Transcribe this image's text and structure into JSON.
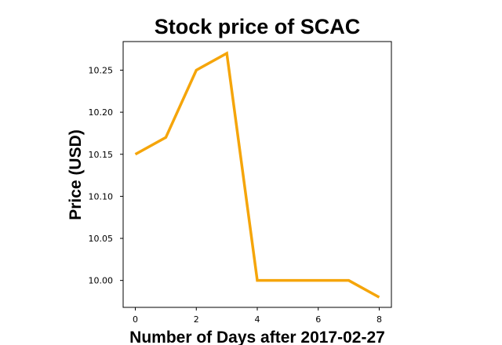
{
  "chart_data": {
    "type": "line",
    "title": "Stock price of SCAC",
    "xlabel": "Number of Days after 2017-02-27",
    "ylabel": "Price (USD)",
    "x": [
      0,
      1,
      2,
      3,
      4,
      5,
      6,
      7,
      8
    ],
    "series": [
      {
        "values": [
          10.15,
          10.17,
          10.25,
          10.27,
          10.0,
          10.0,
          10.0,
          10.0,
          9.98
        ],
        "color": "#f5a50a"
      }
    ],
    "xlim": [
      -0.4,
      8.4
    ],
    "ylim": [
      9.968,
      10.284
    ],
    "xticks": [
      0,
      2,
      4,
      6,
      8
    ],
    "xtick_labels": [
      "0",
      "2",
      "4",
      "6",
      "8"
    ],
    "yticks": [
      10.0,
      10.05,
      10.1,
      10.15,
      10.2,
      10.25
    ],
    "ytick_labels": [
      "10.00",
      "10.05",
      "10.10",
      "10.15",
      "10.20",
      "10.25"
    ],
    "grid": false,
    "legend": "none"
  }
}
